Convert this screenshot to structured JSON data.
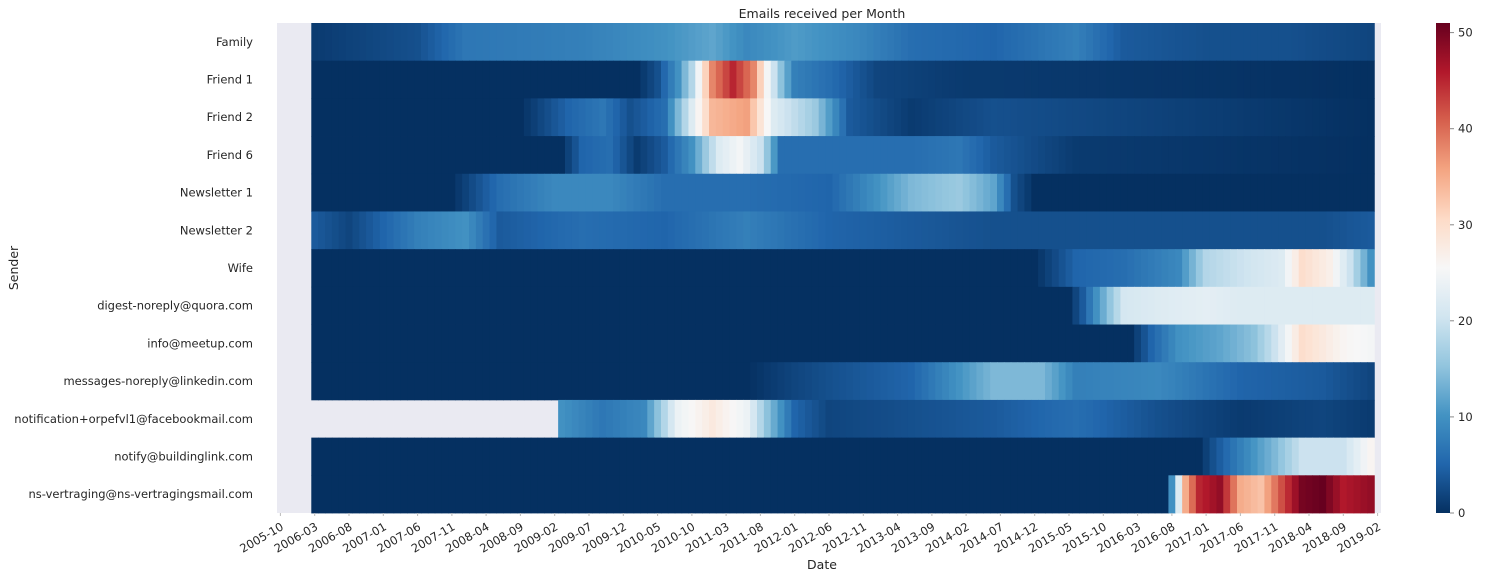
{
  "chart_data": {
    "type": "heatmap",
    "title": "Emails received per Month",
    "xlabel": "Date",
    "ylabel": "Sender",
    "colormap": "RdBu_r",
    "background_color": "#eaeaf2",
    "vmin": 0,
    "vmax": 51,
    "colorbar_ticks": [
      0,
      10,
      20,
      30,
      40,
      50
    ],
    "x_tick_labels": [
      "2005-10",
      "2006-03",
      "2006-08",
      "2007-01",
      "2007-06",
      "2007-11",
      "2008-04",
      "2008-09",
      "2009-02",
      "2009-07",
      "2009-12",
      "2010-05",
      "2010-10",
      "2011-03",
      "2011-08",
      "2012-01",
      "2012-06",
      "2012-11",
      "2013-04",
      "2013-09",
      "2014-02",
      "2014-07",
      "2014-12",
      "2015-05",
      "2015-10",
      "2016-03",
      "2016-08",
      "2017-01",
      "2017-06",
      "2017-11",
      "2018-04",
      "2018-09",
      "2019-02"
    ],
    "x_start": "2005-10",
    "x_end": "2019-02",
    "data_start": "2006-03",
    "data_end": "2019-01",
    "series": [
      {
        "name": "Family",
        "knots": [
          [
            "2006-03",
            1
          ],
          [
            "2007-06",
            3
          ],
          [
            "2008-01",
            7
          ],
          [
            "2009-06",
            8
          ],
          [
            "2010-06",
            10
          ],
          [
            "2011-01",
            12
          ],
          [
            "2011-06",
            9
          ],
          [
            "2012-01",
            11
          ],
          [
            "2012-10",
            9
          ],
          [
            "2013-06",
            6
          ],
          [
            "2014-06",
            5
          ],
          [
            "2015-06",
            8
          ],
          [
            "2016-01",
            4
          ],
          [
            "2017-01",
            3
          ],
          [
            "2018-01",
            3
          ],
          [
            "2019-01",
            2
          ]
        ]
      },
      {
        "name": "Friend 1",
        "knots": [
          [
            "2006-03",
            0
          ],
          [
            "2010-02",
            0
          ],
          [
            "2010-05",
            3
          ],
          [
            "2010-08",
            10
          ],
          [
            "2010-10",
            18
          ],
          [
            "2011-01",
            38
          ],
          [
            "2011-04",
            45
          ],
          [
            "2011-07",
            38
          ],
          [
            "2011-09",
            25
          ],
          [
            "2011-11",
            15
          ],
          [
            "2012-01",
            8
          ],
          [
            "2012-06",
            6
          ],
          [
            "2013-01",
            2
          ],
          [
            "2014-01",
            1
          ],
          [
            "2019-01",
            0
          ]
        ]
      },
      {
        "name": "Friend 2",
        "knots": [
          [
            "2006-03",
            0
          ],
          [
            "2008-09",
            0
          ],
          [
            "2009-04",
            5
          ],
          [
            "2009-09",
            7
          ],
          [
            "2010-01",
            3
          ],
          [
            "2010-06",
            6
          ],
          [
            "2010-09",
            18
          ],
          [
            "2011-01",
            34
          ],
          [
            "2011-06",
            36
          ],
          [
            "2011-10",
            22
          ],
          [
            "2012-04",
            16
          ],
          [
            "2012-09",
            4
          ],
          [
            "2013-06",
            1
          ],
          [
            "2014-06",
            3
          ],
          [
            "2019-01",
            0
          ]
        ]
      },
      {
        "name": "Friend 6",
        "knots": [
          [
            "2006-03",
            0
          ],
          [
            "2009-03",
            0
          ],
          [
            "2009-06",
            5
          ],
          [
            "2009-10",
            6
          ],
          [
            "2010-02",
            1
          ],
          [
            "2010-06",
            4
          ],
          [
            "2010-10",
            10
          ],
          [
            "2011-02",
            22
          ],
          [
            "2011-05",
            25
          ],
          [
            "2011-08",
            20
          ],
          [
            "2011-11",
            6
          ],
          [
            "2012-06",
            6
          ],
          [
            "2013-06",
            6
          ],
          [
            "2014-01",
            7
          ],
          [
            "2014-06",
            4
          ],
          [
            "2015-06",
            1
          ],
          [
            "2019-01",
            0
          ]
        ]
      },
      {
        "name": "Newsletter 1",
        "knots": [
          [
            "2006-03",
            0
          ],
          [
            "2007-11",
            0
          ],
          [
            "2008-06",
            6
          ],
          [
            "2009-02",
            9
          ],
          [
            "2009-10",
            9
          ],
          [
            "2010-06",
            6
          ],
          [
            "2011-06",
            6
          ],
          [
            "2012-06",
            5
          ],
          [
            "2013-01",
            10
          ],
          [
            "2013-06",
            14
          ],
          [
            "2014-01",
            16
          ],
          [
            "2014-06",
            12
          ],
          [
            "2014-09",
            3
          ],
          [
            "2014-12",
            0
          ],
          [
            "2019-01",
            0
          ]
        ]
      },
      {
        "name": "Newsletter 2",
        "knots": [
          [
            "2006-03",
            4
          ],
          [
            "2006-08",
            2
          ],
          [
            "2007-06",
            8
          ],
          [
            "2008-01",
            10
          ],
          [
            "2008-06",
            4
          ],
          [
            "2009-06",
            6
          ],
          [
            "2010-06",
            5
          ],
          [
            "2011-06",
            8
          ],
          [
            "2012-06",
            5
          ],
          [
            "2013-06",
            4
          ],
          [
            "2014-06",
            3
          ],
          [
            "2015-06",
            3
          ],
          [
            "2016-06",
            3
          ],
          [
            "2017-06",
            3
          ],
          [
            "2018-06",
            3
          ],
          [
            "2019-01",
            4
          ]
        ]
      },
      {
        "name": "Wife",
        "knots": [
          [
            "2006-03",
            0
          ],
          [
            "2014-12",
            0
          ],
          [
            "2015-06",
            5
          ],
          [
            "2016-01",
            6
          ],
          [
            "2016-09",
            9
          ],
          [
            "2017-01",
            18
          ],
          [
            "2017-06",
            20
          ],
          [
            "2017-12",
            22
          ],
          [
            "2018-03",
            30
          ],
          [
            "2018-07",
            27
          ],
          [
            "2018-10",
            20
          ],
          [
            "2019-01",
            10
          ]
        ]
      },
      {
        "name": "digest-noreply@quora.com",
        "knots": [
          [
            "2006-03",
            0
          ],
          [
            "2015-05",
            0
          ],
          [
            "2015-07",
            4
          ],
          [
            "2015-09",
            10
          ],
          [
            "2016-01",
            21
          ],
          [
            "2016-06",
            22
          ],
          [
            "2017-01",
            23
          ],
          [
            "2017-06",
            22
          ],
          [
            "2018-01",
            22
          ],
          [
            "2019-01",
            22
          ]
        ]
      },
      {
        "name": "info@meetup.com",
        "knots": [
          [
            "2006-03",
            0
          ],
          [
            "2016-02",
            0
          ],
          [
            "2016-05",
            5
          ],
          [
            "2016-09",
            10
          ],
          [
            "2017-03",
            12
          ],
          [
            "2017-08",
            15
          ],
          [
            "2017-11",
            20
          ],
          [
            "2018-03",
            30
          ],
          [
            "2018-06",
            28
          ],
          [
            "2018-09",
            26
          ],
          [
            "2019-01",
            25
          ]
        ]
      },
      {
        "name": "messages-noreply@linkedin.com",
        "knots": [
          [
            "2006-03",
            0
          ],
          [
            "2011-06",
            0
          ],
          [
            "2012-01",
            2
          ],
          [
            "2012-06",
            3
          ],
          [
            "2013-06",
            5
          ],
          [
            "2014-06",
            14
          ],
          [
            "2015-01",
            14
          ],
          [
            "2015-06",
            8
          ],
          [
            "2016-06",
            9
          ],
          [
            "2017-06",
            5
          ],
          [
            "2018-06",
            4
          ],
          [
            "2019-01",
            2
          ]
        ]
      },
      {
        "name": "notification+orpefvl1@facebookmail.com",
        "knots": [
          [
            "2009-03",
            10
          ],
          [
            "2009-09",
            7
          ],
          [
            "2010-03",
            9
          ],
          [
            "2010-08",
            24
          ],
          [
            "2011-01",
            28
          ],
          [
            "2011-06",
            24
          ],
          [
            "2011-09",
            15
          ],
          [
            "2012-01",
            5
          ],
          [
            "2012-06",
            2
          ],
          [
            "2013-06",
            3
          ],
          [
            "2014-06",
            4
          ],
          [
            "2015-06",
            6
          ],
          [
            "2016-06",
            3
          ],
          [
            "2017-06",
            1
          ],
          [
            "2018-06",
            2
          ],
          [
            "2019-01",
            1
          ]
        ]
      },
      {
        "name": "notify@buildinglink.com",
        "knots": [
          [
            "2006-03",
            0
          ],
          [
            "2016-12",
            0
          ],
          [
            "2017-02",
            3
          ],
          [
            "2017-06",
            8
          ],
          [
            "2017-11",
            14
          ],
          [
            "2018-03",
            20
          ],
          [
            "2018-09",
            20
          ],
          [
            "2019-01",
            26
          ]
        ]
      },
      {
        "name": "ns-vertraging@ns-vertragingsmail.com",
        "knots": [
          [
            "2006-03",
            0
          ],
          [
            "2016-07",
            0
          ],
          [
            "2016-08",
            10
          ],
          [
            "2016-09",
            22
          ],
          [
            "2016-10",
            35
          ],
          [
            "2016-12",
            45
          ],
          [
            "2017-03",
            48
          ],
          [
            "2017-06",
            35
          ],
          [
            "2017-09",
            33
          ],
          [
            "2017-12",
            42
          ],
          [
            "2018-03",
            50
          ],
          [
            "2018-06",
            51
          ],
          [
            "2018-09",
            46
          ],
          [
            "2019-01",
            48
          ]
        ]
      }
    ]
  }
}
